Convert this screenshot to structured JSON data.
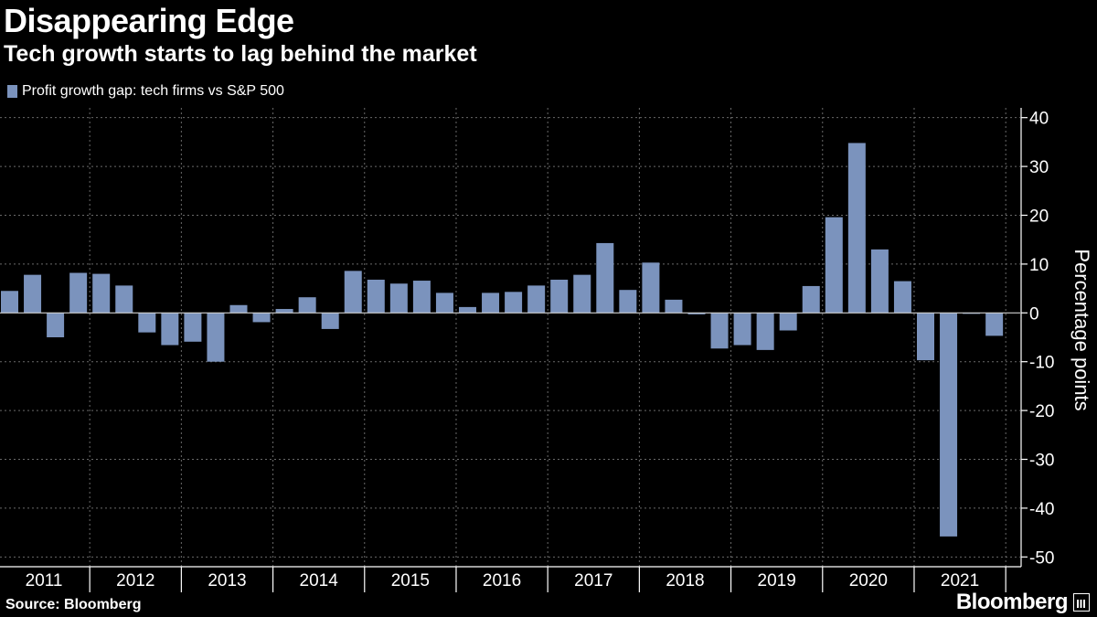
{
  "header": {
    "title": "Disappearing Edge",
    "subtitle": "Tech growth starts to lag behind the market"
  },
  "footer": {
    "source": "Source: Bloomberg",
    "brand": "Bloomberg"
  },
  "colors": {
    "bar": "#7b93bd",
    "background": "#000000",
    "grid": "#6a6a6a",
    "text": "#ffffff"
  },
  "chart_data": {
    "type": "bar",
    "title": "Disappearing Edge",
    "subtitle": "Tech growth starts to lag behind the market",
    "xlabel": "",
    "ylabel": "Percentage points",
    "ylim": [
      -52,
      42
    ],
    "yticks": [
      40,
      30,
      20,
      10,
      0,
      -10,
      -20,
      -30,
      -40,
      -50
    ],
    "grid": true,
    "legend_position": "top-left",
    "years": [
      "2011",
      "2012",
      "2013",
      "2014",
      "2015",
      "2016",
      "2017",
      "2018",
      "2019",
      "2020",
      "2021"
    ],
    "series": [
      {
        "name": "Profit growth gap: tech firms vs S&P 500",
        "values": [
          4.5,
          7.8,
          -5.0,
          8.2,
          8.0,
          5.6,
          -4.0,
          -6.6,
          -5.9,
          -10.0,
          1.6,
          -1.9,
          0.8,
          3.2,
          -3.3,
          8.6,
          6.8,
          6.0,
          6.6,
          4.1,
          1.2,
          4.1,
          4.3,
          5.6,
          6.8,
          7.8,
          14.3,
          4.7,
          10.3,
          2.7,
          -0.3,
          -7.3,
          -6.6,
          -7.6,
          -3.6,
          5.5,
          19.6,
          34.8,
          13.0,
          6.5,
          -9.7,
          -45.8,
          -0.2,
          -4.7
        ]
      }
    ]
  }
}
